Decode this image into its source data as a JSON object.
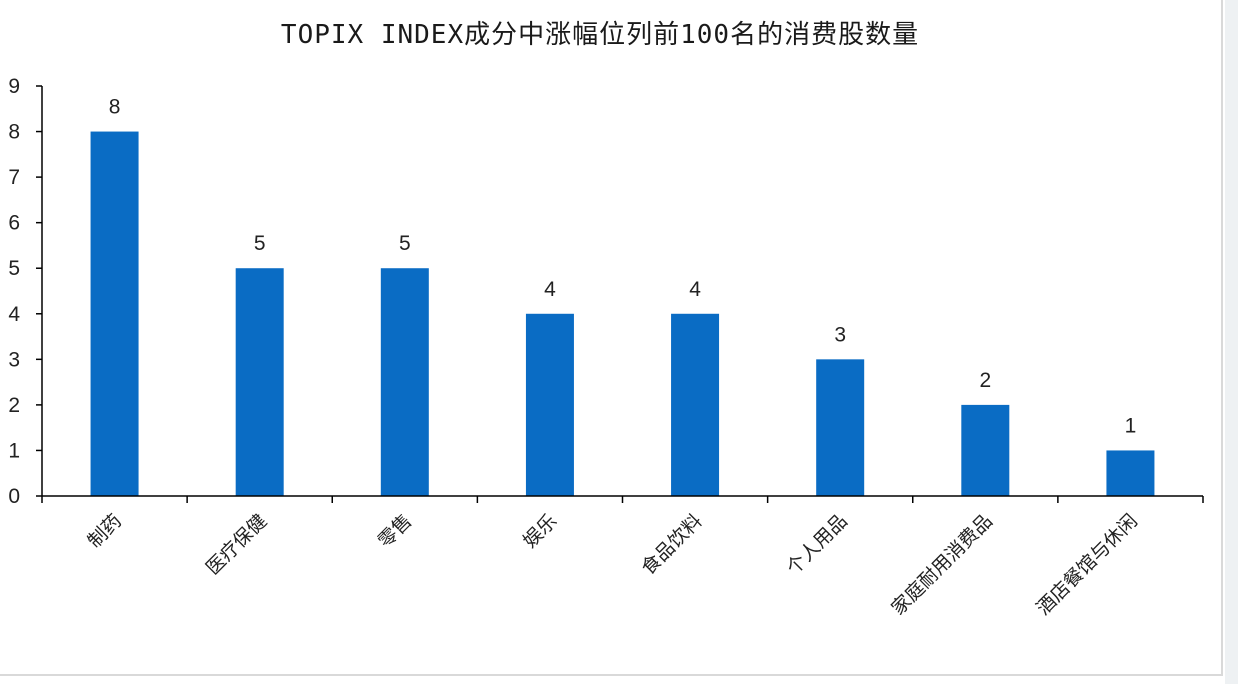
{
  "chart_data": {
    "type": "bar",
    "title": "TOPIX INDEX成分中涨幅位列前100名的消费股数量",
    "xlabel": "",
    "ylabel": "",
    "categories": [
      "制药",
      "医疗保健",
      "零售",
      "娱乐",
      "食品饮料",
      "个人用品",
      "家庭耐用消费品",
      "酒店餐馆与休闲"
    ],
    "values": [
      8,
      5,
      5,
      4,
      4,
      3,
      2,
      1
    ],
    "ylim": [
      0,
      9
    ],
    "yticks": [
      "0",
      "1",
      "2",
      "3",
      "4",
      "5",
      "6",
      "7",
      "8",
      "9"
    ],
    "data_labels": [
      "8",
      "5",
      "5",
      "4",
      "4",
      "3",
      "2",
      "1"
    ],
    "bar_color": "#0a6cc4",
    "axis_color": "#000000",
    "grid": false,
    "legend": "none"
  }
}
